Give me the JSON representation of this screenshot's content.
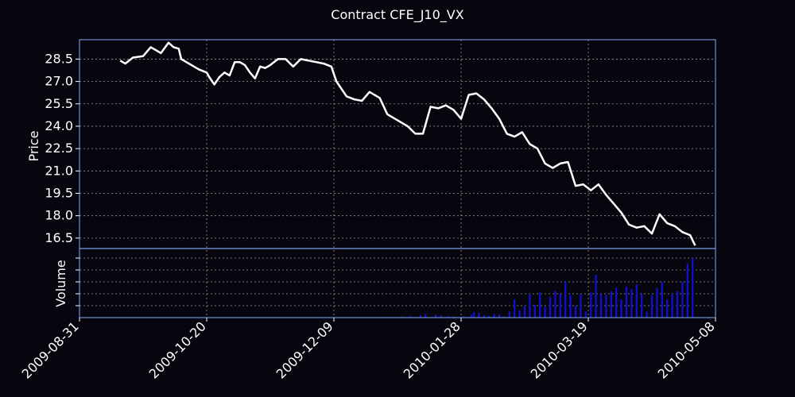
{
  "colors": {
    "background": "#07050d",
    "frame": "#6f8fd8",
    "grid": "#9a9a9a",
    "price_line": "#ffffff",
    "volume_bar": "#1010c8",
    "text": "#ffffff"
  },
  "chart_data": {
    "type": "line",
    "title": "Contract CFE_J10_VX",
    "x_tick_labels": [
      "2009-08-31",
      "2009-10-20",
      "2009-12-09",
      "2010-01-28",
      "2010-03-19",
      "2010-05-08"
    ],
    "x_range": [
      "2009-08-31",
      "2010-05-08"
    ],
    "grid": true,
    "price_panel": {
      "ylabel": "Price",
      "ylim": [
        15.8,
        29.8
      ],
      "y_ticks": [
        16.5,
        18.0,
        19.5,
        21.0,
        22.5,
        24.0,
        25.5,
        27.0,
        28.5
      ],
      "y_tick_labels": [
        "16.5",
        "18.0",
        "19.5",
        "21.0",
        "22.5",
        "24.0",
        "25.5",
        "27.0",
        "28.5"
      ],
      "series": [
        {
          "x": [
            "2009-09-16",
            "2009-09-18",
            "2009-09-21",
            "2009-09-25",
            "2009-09-28",
            "2009-09-30",
            "2009-10-02",
            "2009-10-05",
            "2009-10-07",
            "2009-10-09",
            "2009-10-10",
            "2009-10-13",
            "2009-10-15",
            "2009-10-17",
            "2009-10-20",
            "2009-10-21",
            "2009-10-23",
            "2009-10-25",
            "2009-10-27",
            "2009-10-29",
            "2009-10-31",
            "2009-11-02",
            "2009-11-04",
            "2009-11-06",
            "2009-11-08",
            "2009-11-10",
            "2009-11-12",
            "2009-11-14",
            "2009-11-17",
            "2009-11-20",
            "2009-11-23",
            "2009-11-26",
            "2009-11-29",
            "2009-12-02",
            "2009-12-05",
            "2009-12-08",
            "2009-12-10",
            "2009-12-14",
            "2009-12-17",
            "2009-12-20",
            "2009-12-23",
            "2009-12-27",
            "2009-12-30",
            "2010-01-03",
            "2010-01-07",
            "2010-01-10",
            "2010-01-13",
            "2010-01-16",
            "2010-01-19",
            "2010-01-22",
            "2010-01-25",
            "2010-01-28",
            "2010-01-31",
            "2010-02-03",
            "2010-02-06",
            "2010-02-09",
            "2010-02-12",
            "2010-02-15",
            "2010-02-18",
            "2010-02-21",
            "2010-02-24",
            "2010-02-27",
            "2010-03-02",
            "2010-03-05",
            "2010-03-08",
            "2010-03-11",
            "2010-03-14",
            "2010-03-17",
            "2010-03-20",
            "2010-03-23",
            "2010-03-26",
            "2010-03-29",
            "2010-04-01",
            "2010-04-04",
            "2010-04-07",
            "2010-04-10",
            "2010-04-13",
            "2010-04-16",
            "2010-04-19",
            "2010-04-22",
            "2010-04-25",
            "2010-04-28",
            "2010-04-30"
          ],
          "y": [
            28.4,
            28.2,
            28.6,
            28.7,
            29.3,
            29.1,
            28.9,
            29.6,
            29.3,
            29.2,
            28.5,
            28.2,
            28.0,
            27.8,
            27.6,
            27.3,
            26.8,
            27.3,
            27.6,
            27.4,
            28.3,
            28.3,
            28.1,
            27.6,
            27.2,
            28.0,
            27.9,
            28.1,
            28.5,
            28.5,
            28.0,
            28.5,
            28.4,
            28.3,
            28.2,
            28.0,
            27.0,
            26.0,
            25.8,
            25.7,
            26.3,
            25.9,
            24.8,
            24.4,
            24.0,
            23.5,
            23.5,
            25.3,
            25.2,
            25.4,
            25.1,
            24.5,
            26.1,
            26.2,
            25.8,
            25.2,
            24.5,
            23.5,
            23.3,
            23.6,
            22.8,
            22.5,
            21.5,
            21.2,
            21.5,
            21.6,
            20.0,
            20.1,
            19.7,
            20.1,
            19.4,
            18.8,
            18.2,
            17.4,
            17.2,
            17.3,
            16.8,
            18.1,
            17.5,
            17.3,
            16.9,
            16.7,
            16.0
          ],
          "name": ""
        }
      ]
    },
    "volume_panel": {
      "ylabel": "Volume",
      "ylim": [
        0,
        1
      ],
      "y_ticks": [
        0.2,
        0.4,
        0.6,
        0.8,
        1.0
      ],
      "bars": {
        "x": [
          "2009-12-30",
          "2010-01-05",
          "2010-01-08",
          "2010-01-12",
          "2010-01-14",
          "2010-01-18",
          "2010-01-20",
          "2010-01-23",
          "2010-01-25",
          "2010-01-27",
          "2010-01-29",
          "2010-02-01",
          "2010-02-02",
          "2010-02-04",
          "2010-02-06",
          "2010-02-08",
          "2010-02-10",
          "2010-02-12",
          "2010-02-14",
          "2010-02-16",
          "2010-02-18",
          "2010-02-20",
          "2010-02-22",
          "2010-02-24",
          "2010-02-26",
          "2010-02-28",
          "2010-03-02",
          "2010-03-04",
          "2010-03-06",
          "2010-03-08",
          "2010-03-10",
          "2010-03-12",
          "2010-03-14",
          "2010-03-16",
          "2010-03-18",
          "2010-03-20",
          "2010-03-22",
          "2010-03-24",
          "2010-03-26",
          "2010-03-28",
          "2010-03-30",
          "2010-04-01",
          "2010-04-03",
          "2010-04-05",
          "2010-04-07",
          "2010-04-09",
          "2010-04-11",
          "2010-04-13",
          "2010-04-15",
          "2010-04-17",
          "2010-04-19",
          "2010-04-21",
          "2010-04-23",
          "2010-04-25",
          "2010-04-27",
          "2010-04-29"
        ],
        "values": [
          0.01,
          0.02,
          0.03,
          0.04,
          0.06,
          0.05,
          0.04,
          0.03,
          0.02,
          0.01,
          0.02,
          0.05,
          0.09,
          0.08,
          0.04,
          0.03,
          0.06,
          0.05,
          0.02,
          0.1,
          0.3,
          0.12,
          0.2,
          0.4,
          0.22,
          0.42,
          0.18,
          0.35,
          0.45,
          0.4,
          0.6,
          0.38,
          0.2,
          0.4,
          0.1,
          0.42,
          0.72,
          0.4,
          0.38,
          0.44,
          0.5,
          0.3,
          0.52,
          0.48,
          0.56,
          0.4,
          0.1,
          0.38,
          0.5,
          0.6,
          0.3,
          0.4,
          0.45,
          0.6,
          0.9,
          1.0
        ]
      }
    }
  }
}
